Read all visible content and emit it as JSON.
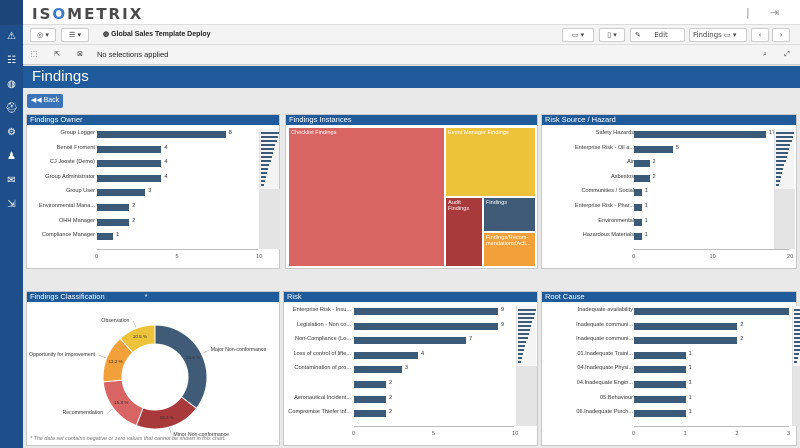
{
  "app": {
    "brand_prefix": "IS",
    "brand_o": "O",
    "brand_suffix": "METRIX",
    "title": "Global Sales Template Deploy",
    "selection_text": "No selections applied",
    "edit_label": "Edit",
    "sheet_selector": "Findings"
  },
  "sheet": {
    "title": "Findings",
    "back_label": "Back"
  },
  "sidebar_icons": [
    "warning-icon",
    "sliders-icon",
    "globe-icon",
    "helmet-icon",
    "gear-icon",
    "person-icon",
    "inbox-icon",
    "exit-icon"
  ],
  "findings_owner": {
    "title": "Findings Owner",
    "chart_data": {
      "type": "bar",
      "categories": [
        "Group Logger",
        "Benoit Froment",
        "CJ Jooste (Demo)",
        "Group Administrator",
        "Group User",
        "Environmental Mana...",
        "OHH Manager",
        "Compliance Manager"
      ],
      "values": [
        8,
        4,
        4,
        4,
        3,
        2,
        2,
        1
      ],
      "xlim": [
        0,
        10
      ],
      "ticks": [
        "0",
        "5",
        "10"
      ]
    }
  },
  "findings_instances": {
    "title": "Findings Instances",
    "cells": {
      "checklist": "Checklist Findings",
      "event_manager": "Event Manager Findings",
      "audit": "Audit Findings",
      "findings": "Findings",
      "recommendations": "Findings/Recom-mendations/Acti..."
    },
    "colors": {
      "red": "#d86463",
      "yellow": "#eec33c",
      "darkred": "#a83a3c",
      "slate": "#3f5b78",
      "orange": "#f2a13a"
    }
  },
  "risk_source": {
    "title": "Risk Source / Hazard",
    "chart_data": {
      "type": "bar",
      "categories": [
        "Safety Hazards",
        "Enterprise Risk - Oil a...",
        "Air",
        "Asbestos",
        "Communities / Social",
        "Enterprise Risk - Phar...",
        "Environmental",
        "Hazardous Materials"
      ],
      "values": [
        17,
        5,
        2,
        2,
        1,
        1,
        1,
        1
      ],
      "xlim": [
        0,
        20
      ],
      "ticks": [
        "0",
        "10",
        "20"
      ]
    }
  },
  "classification": {
    "title": "Findings Classification",
    "marker": "*",
    "footnote": "* The data set contains negative or zero values that cannot be shown in this chart.",
    "chart_data": {
      "type": "pie",
      "categories": [
        "Major Non-conformance",
        "Minor Non-conformance",
        "Recommendation",
        "Opportunity for Improvement",
        "Observation"
      ],
      "values": [
        31.6,
        18.4,
        15.8,
        13.2,
        10.5
      ],
      "labels": [
        "31.6 %",
        "18.4 %",
        "15.8 %",
        "13.2 %",
        "10.5 %"
      ],
      "colors": [
        "#3f5b78",
        "#a83a3c",
        "#d86463",
        "#f2a13a",
        "#eec33c"
      ]
    }
  },
  "risk": {
    "title": "Risk",
    "chart_data": {
      "type": "bar",
      "categories": [
        "Enterprise Risk - Insu...",
        "Legislation - Non co...",
        "Non-Compliance (Lo...",
        "Loss of control of lifte...",
        "Contamination of pro...",
        "",
        "Aeronautical Incident...",
        "Compromise Thiefer inf..."
      ],
      "values": [
        9,
        9,
        7,
        4,
        3,
        2,
        2,
        2
      ],
      "xlim": [
        0,
        10
      ],
      "ticks": [
        "0",
        "5",
        "10"
      ]
    }
  },
  "root_cause": {
    "title": "Root Cause",
    "chart_data": {
      "type": "bar",
      "categories": [
        "Inadequate availability",
        "Inadequate communi...",
        "Inadequate communi...",
        "01.Inadequate Traini...",
        "04.Inadequate Physi...",
        "04.Inadequate Engin...",
        "05.Behaviour",
        "06.Inadequate Purch..."
      ],
      "values": [
        3,
        2,
        2,
        1,
        1,
        1,
        1,
        1
      ],
      "xlim": [
        0,
        3
      ],
      "ticks": [
        "0",
        "1",
        "2",
        "3"
      ]
    }
  }
}
